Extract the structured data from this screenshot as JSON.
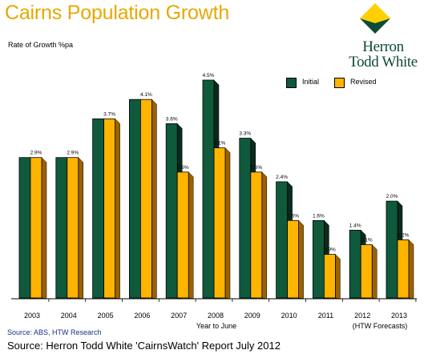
{
  "header": {
    "title": "Cairns Population Growth",
    "rate_label": "Rate of Growth  %pa"
  },
  "logo": {
    "line1": "Herron",
    "line2": "Todd White",
    "mark_color": "#ffd000",
    "mark_dark_color": "#0d4b3a"
  },
  "legend": {
    "initial": "Initial",
    "revised": "Revised"
  },
  "colors": {
    "initial": "#0f5a3c",
    "revised": "#ffb400",
    "title": "#e8a800"
  },
  "chart_data": {
    "type": "bar",
    "title": "Cairns Population Growth",
    "xlabel": "Year to June",
    "ylabel": "Rate of Growth  %pa",
    "categories": [
      "2003",
      "2004",
      "2005",
      "2006",
      "2007",
      "2008",
      "2009",
      "2010",
      "2011",
      "2012",
      "2013"
    ],
    "series": [
      {
        "name": "Initial",
        "values": [
          2.9,
          2.9,
          3.7,
          4.1,
          3.6,
          4.5,
          3.3,
          2.4,
          1.6,
          1.4,
          2.0
        ],
        "labels": [
          "",
          "",
          "",
          "",
          "3.6%",
          "4.5%",
          "3.3%",
          "2.4%",
          "1.6%",
          "1.4%",
          "2.0%"
        ]
      },
      {
        "name": "Revised",
        "values": [
          2.9,
          2.9,
          3.7,
          4.1,
          2.6,
          3.1,
          2.6,
          1.6,
          0.9,
          1.1,
          1.2
        ],
        "labels": [
          "2.9%",
          "2.9%",
          "3.7%",
          "4.1%",
          "2.6%",
          "3.1%",
          "2.6%",
          "1.6%",
          "0.9%",
          "1.1%",
          "1.2%"
        ]
      }
    ],
    "ylim": [
      0,
      4.5
    ],
    "grid": false,
    "legend_position": "top-right",
    "annotation": "(HTW Forecasts)"
  },
  "sources": {
    "small": "Source: ABS, HTW Research",
    "large": "Source: Herron Todd White 'CairnsWatch' Report July 2012"
  }
}
